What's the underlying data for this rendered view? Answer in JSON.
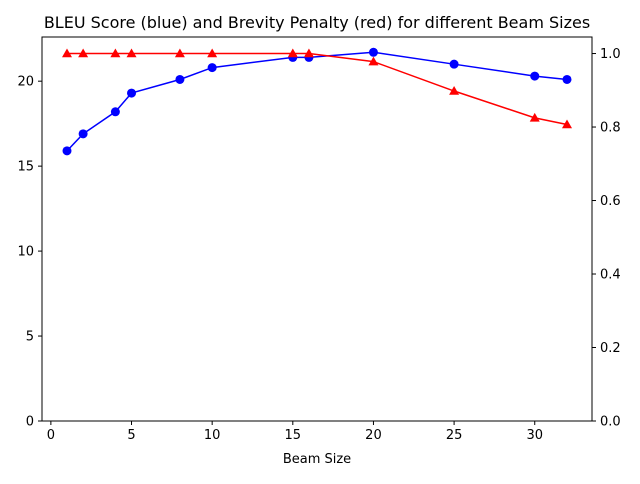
{
  "chart_data": {
    "type": "line",
    "title": "BLEU Score (blue) and Brevity Penalty (red) for different Beam Sizes",
    "xlabel": "Beam Size",
    "ylabel_left": "",
    "ylabel_right": "",
    "x": [
      1,
      2,
      4,
      5,
      8,
      10,
      15,
      16,
      20,
      25,
      30,
      32
    ],
    "xlim": [
      -0.55,
      33.55
    ],
    "xticks": [
      0,
      5,
      10,
      15,
      20,
      25,
      30
    ],
    "grid": false,
    "legend": "none",
    "series": [
      {
        "axis": "left",
        "color": "#0000ff",
        "marker": "circle",
        "values": [
          15.9,
          16.9,
          18.2,
          19.3,
          20.1,
          20.8,
          21.4,
          21.4,
          21.7,
          21.0,
          20.3,
          20.1
        ]
      },
      {
        "axis": "right",
        "color": "#ff0000",
        "marker": "triangle",
        "values": [
          1.0,
          1.0,
          1.0,
          1.0,
          1.0,
          1.0,
          1.0,
          1.0,
          0.978,
          0.898,
          0.825,
          0.807
        ]
      }
    ],
    "ylim_left": [
      0,
      22.6
    ],
    "yticks_left": [
      0,
      5,
      10,
      15,
      20
    ],
    "ylim_right": [
      0,
      1.045
    ],
    "yticks_right": [
      0.0,
      0.2,
      0.4,
      0.6,
      0.8,
      1.0
    ]
  }
}
